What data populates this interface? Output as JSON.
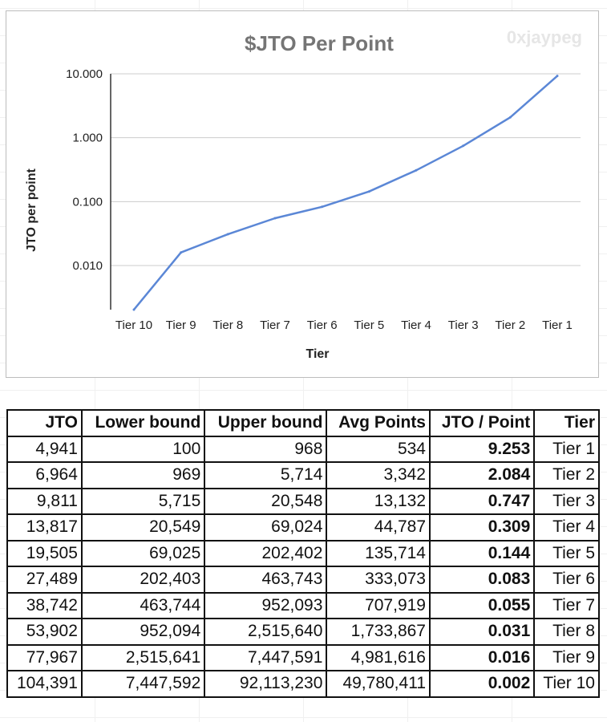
{
  "watermark": "0xjaypeg",
  "chart_data": {
    "type": "line",
    "title": "$JTO Per Point",
    "xlabel": "Tier",
    "ylabel": "JTO per point",
    "y_scale": "log",
    "ylim": [
      0.0022,
      10
    ],
    "y_ticks": [
      "10.000",
      "1.000",
      "0.100",
      "0.010"
    ],
    "grid": true,
    "legend": "none",
    "line_color": "#5b87d6",
    "categories": [
      "Tier 10",
      "Tier 9",
      "Tier 8",
      "Tier 7",
      "Tier 6",
      "Tier 5",
      "Tier 4",
      "Tier 3",
      "Tier 2",
      "Tier 1"
    ],
    "values": [
      0.002,
      0.016,
      0.031,
      0.055,
      0.083,
      0.144,
      0.309,
      0.747,
      2.084,
      9.253
    ]
  },
  "table": {
    "headers": [
      "JTO",
      "Lower bound",
      "Upper bound",
      "Avg Points",
      "JTO / Point",
      "Tier"
    ],
    "rows": [
      [
        "4,941",
        "100",
        "968",
        "534",
        "9.253",
        "Tier 1"
      ],
      [
        "6,964",
        "969",
        "5,714",
        "3,342",
        "2.084",
        "Tier 2"
      ],
      [
        "9,811",
        "5,715",
        "20,548",
        "13,132",
        "0.747",
        "Tier 3"
      ],
      [
        "13,817",
        "20,549",
        "69,024",
        "44,787",
        "0.309",
        "Tier 4"
      ],
      [
        "19,505",
        "69,025",
        "202,402",
        "135,714",
        "0.144",
        "Tier 5"
      ],
      [
        "27,489",
        "202,403",
        "463,743",
        "333,073",
        "0.083",
        "Tier 6"
      ],
      [
        "38,742",
        "463,744",
        "952,093",
        "707,919",
        "0.055",
        "Tier 7"
      ],
      [
        "53,902",
        "952,094",
        "2,515,640",
        "1,733,867",
        "0.031",
        "Tier 8"
      ],
      [
        "77,967",
        "2,515,641",
        "7,447,591",
        "4,981,616",
        "0.016",
        "Tier 9"
      ],
      [
        "104,391",
        "7,447,592",
        "92,113,230",
        "49,780,411",
        "0.002",
        "Tier 10"
      ]
    ]
  }
}
